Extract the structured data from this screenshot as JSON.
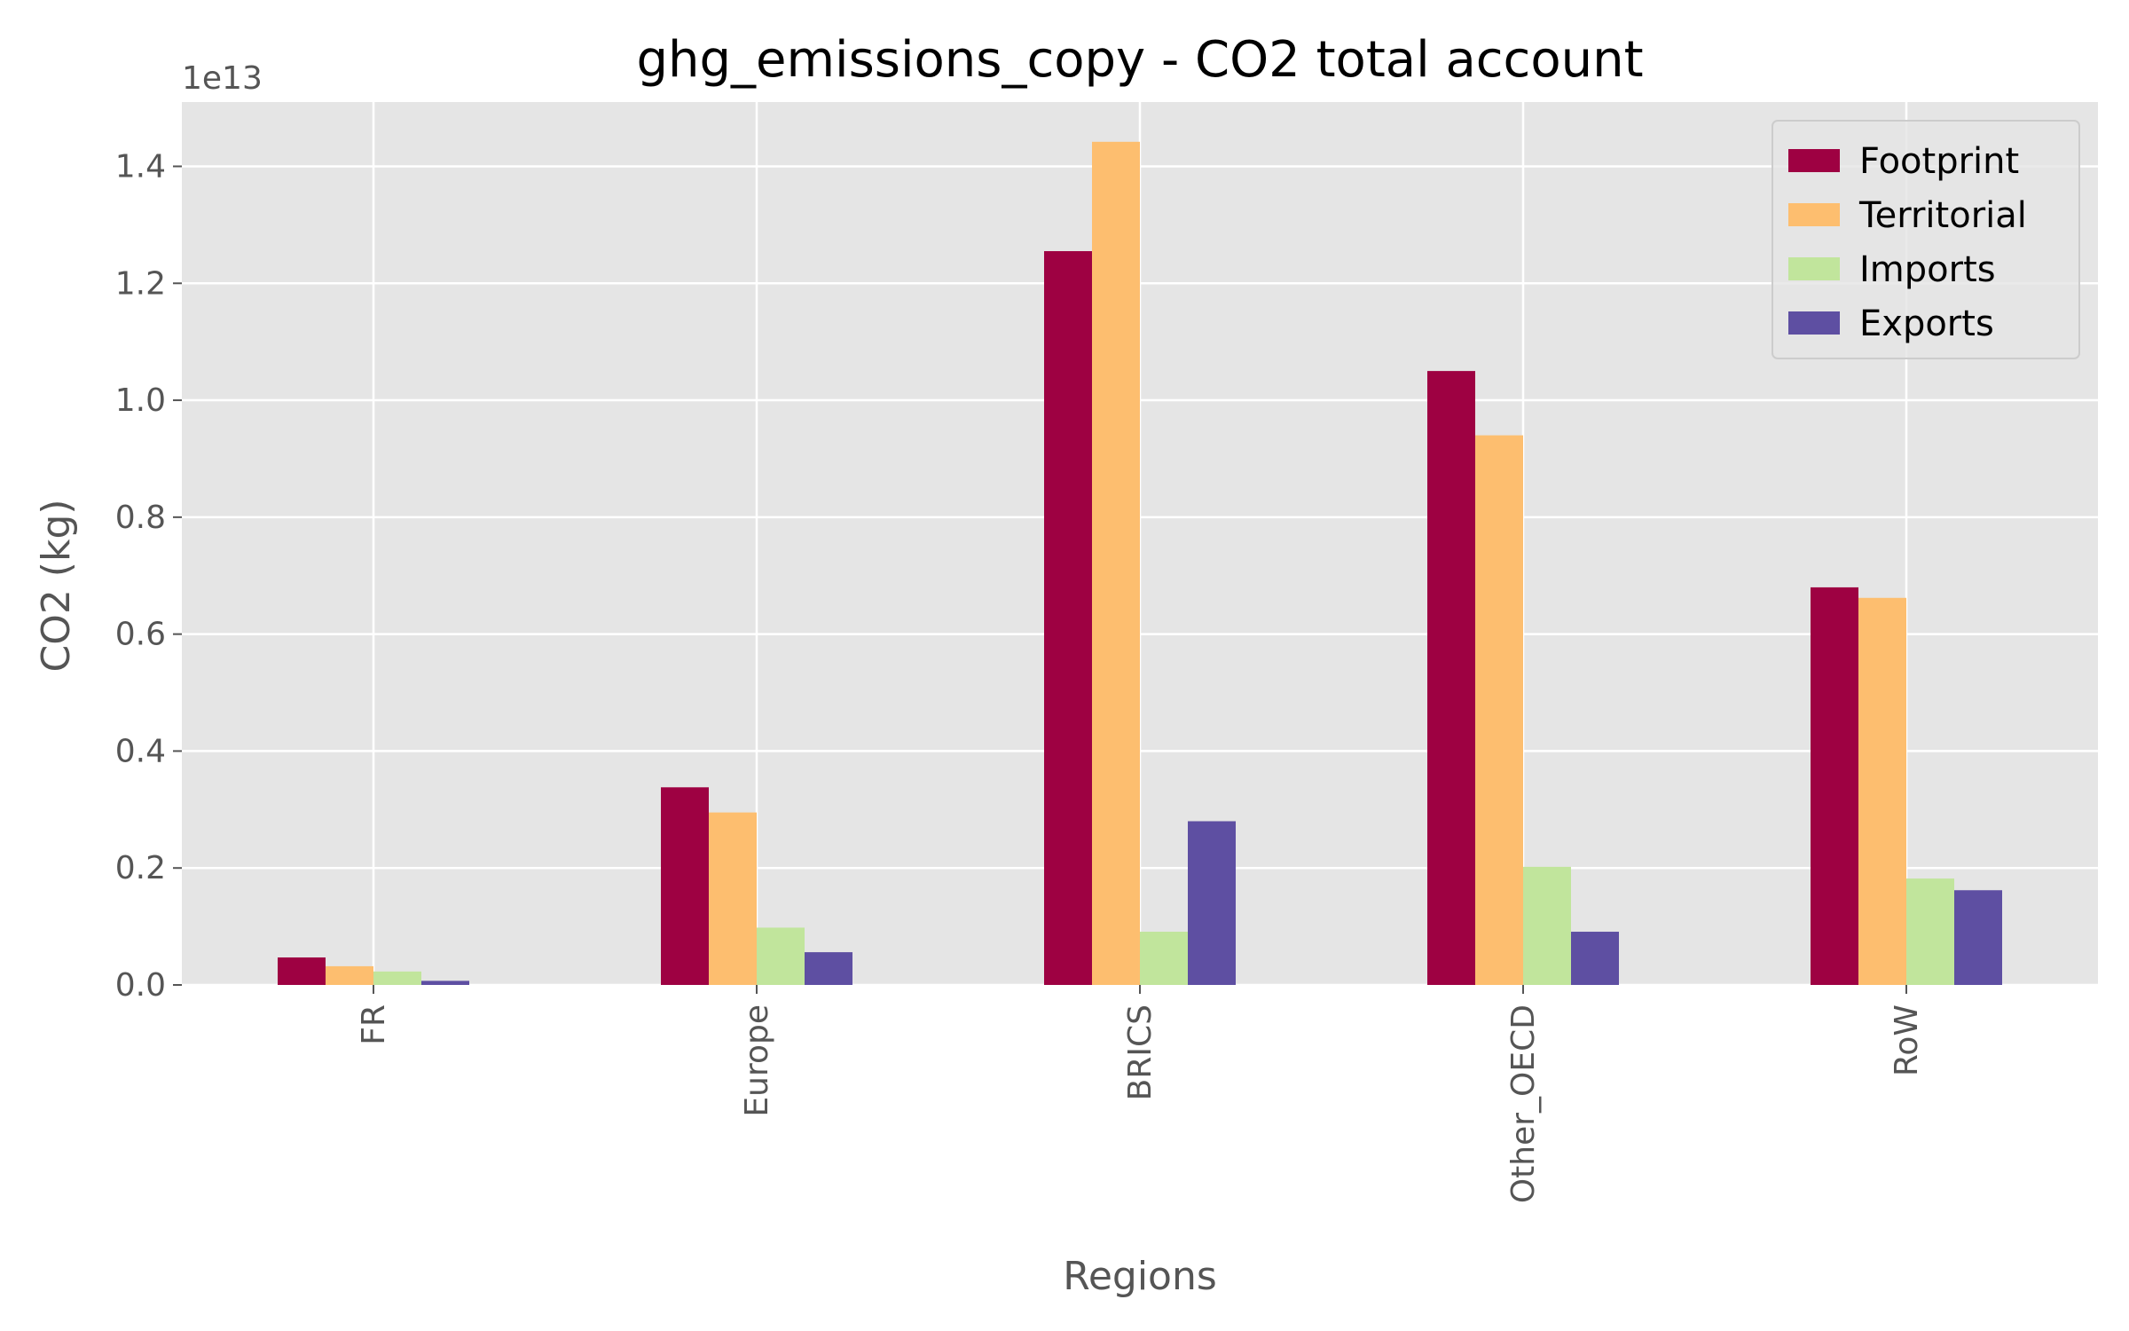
{
  "chart_data": {
    "type": "bar",
    "title": "ghg_emissions_copy - CO2 total account",
    "xlabel": "Regions",
    "ylabel": "CO2 (kg)",
    "y_offset_label": "1e13",
    "ylim": [
      0,
      1.51
    ],
    "yticks": [
      0.0,
      0.2,
      0.4,
      0.6,
      0.8,
      1.0,
      1.2,
      1.4
    ],
    "ytick_labels": [
      "0.0",
      "0.2",
      "0.4",
      "0.6",
      "0.8",
      "1.0",
      "1.2",
      "1.4"
    ],
    "grid": true,
    "legend_position": "top-right",
    "categories": [
      "FR",
      "Europe",
      "BRICS",
      "Other_OECD",
      "RoW"
    ],
    "series": [
      {
        "name": "Footprint",
        "color": "#9e0142",
        "values": [
          0.047,
          0.338,
          1.255,
          1.05,
          0.68
        ]
      },
      {
        "name": "Territorial",
        "color": "#fdbe6f",
        "values": [
          0.032,
          0.295,
          1.442,
          0.94,
          0.662
        ]
      },
      {
        "name": "Imports",
        "color": "#c1e59c",
        "values": [
          0.023,
          0.098,
          0.091,
          0.202,
          0.182
        ]
      },
      {
        "name": "Exports",
        "color": "#5e4fa2",
        "values": [
          0.007,
          0.056,
          0.28,
          0.091,
          0.162
        ]
      }
    ]
  }
}
